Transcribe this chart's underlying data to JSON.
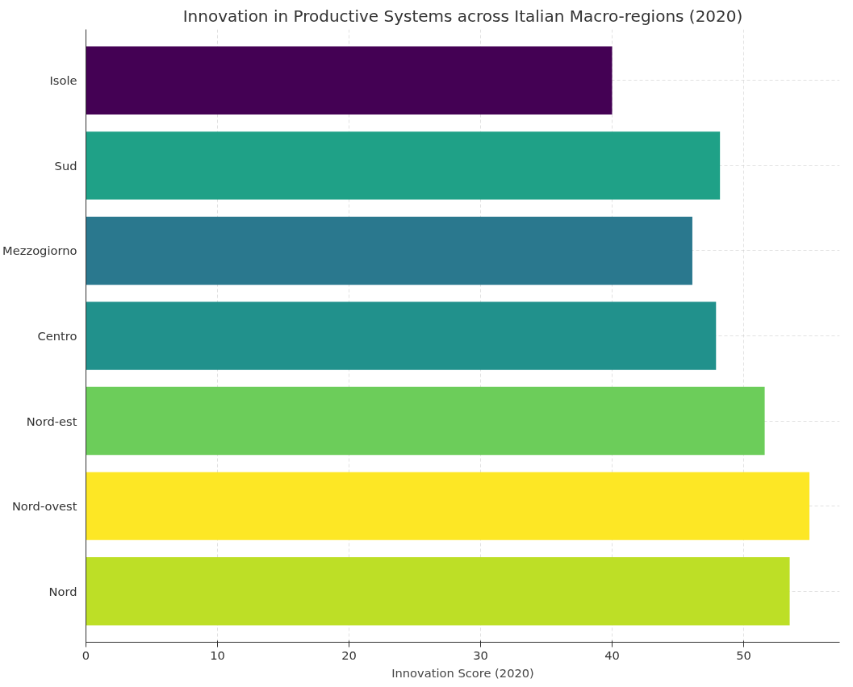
{
  "chart_data": {
    "type": "bar",
    "orientation": "horizontal",
    "title": "Innovation in Productive Systems across Italian Macro-regions (2020)",
    "xlabel": "Innovation Score (2020)",
    "categories": [
      "Isole",
      "Sud",
      "Mezzogiorno",
      "Centro",
      "Nord-est",
      "Nord-ovest",
      "Nord"
    ],
    "values": [
      40.0,
      48.2,
      46.1,
      47.9,
      51.6,
      55.0,
      53.5
    ],
    "colors": [
      "#440154",
      "#1fa187",
      "#2a788e",
      "#21918c",
      "#6ccd5a",
      "#fde725",
      "#bddf26"
    ],
    "xlim": [
      0,
      57.3
    ],
    "xticks": [
      0,
      10,
      20,
      30,
      40,
      50
    ],
    "grid": true
  }
}
